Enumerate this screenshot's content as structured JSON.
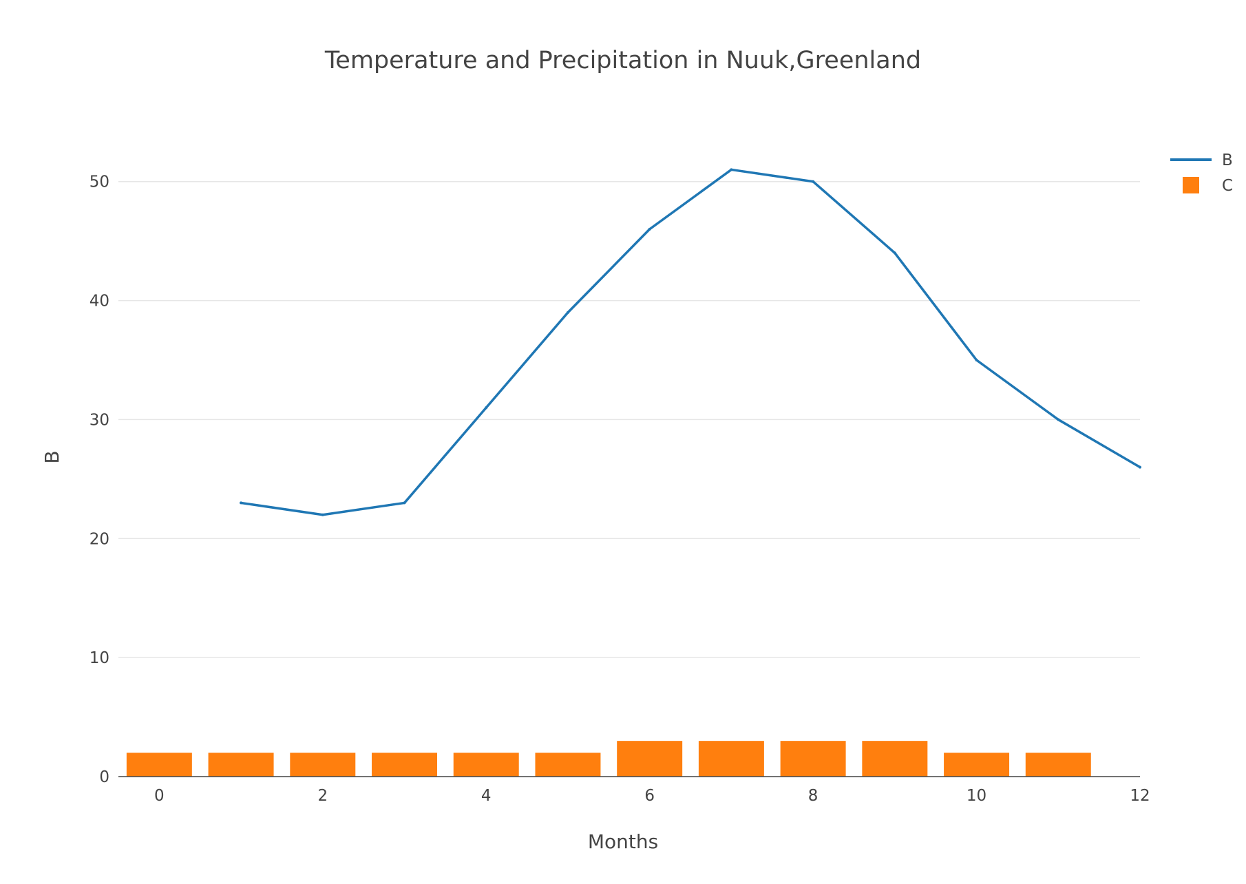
{
  "chart_data": {
    "type": "bar",
    "title": "Temperature  and Precipitation in Nuuk,Greenland",
    "xlabel": "Months",
    "ylabel": "B",
    "xlim": [
      -0.5,
      12
    ],
    "ylim": [
      0,
      56
    ],
    "x_ticks": [
      "0",
      "2",
      "4",
      "6",
      "8",
      "10",
      "12"
    ],
    "y_ticks": [
      "0",
      "10",
      "20",
      "30",
      "40",
      "50"
    ],
    "grid": true,
    "legend_position": "top-right",
    "series": [
      {
        "name": "B",
        "type": "line",
        "color": "#1f77b4",
        "x": [
          1,
          2,
          3,
          4,
          5,
          6,
          7,
          8,
          9,
          10,
          11,
          12
        ],
        "values": [
          23,
          22,
          23,
          31,
          39,
          46,
          51,
          50,
          44,
          35,
          30,
          26
        ]
      },
      {
        "name": "C",
        "type": "bar",
        "color": "#ff7f0e",
        "x": [
          0,
          1,
          2,
          3,
          4,
          5,
          6,
          7,
          8,
          9,
          10,
          11
        ],
        "values": [
          2,
          2,
          2,
          2,
          2,
          2,
          3,
          3,
          3,
          3,
          2,
          2
        ]
      }
    ]
  }
}
